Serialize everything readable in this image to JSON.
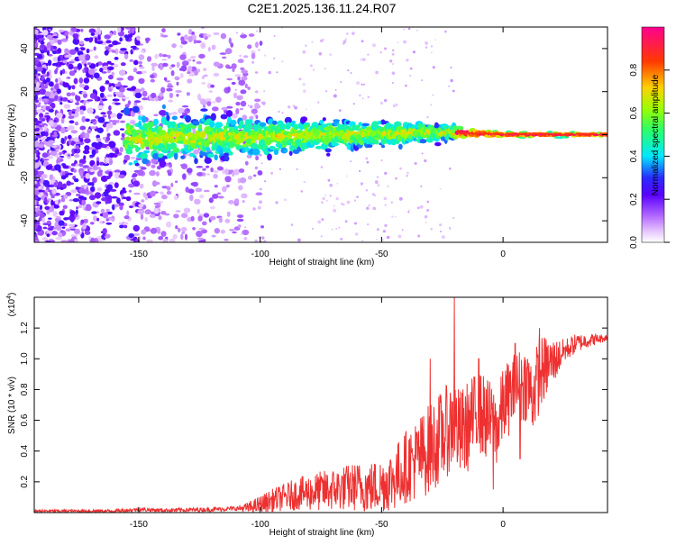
{
  "page_title": "C2E1.2025.136.11.24.R07",
  "chart_data": [
    {
      "type": "heatmap",
      "title": "C2E1.2025.136.11.24.R07",
      "xlabel": "Height of straight line (km)",
      "ylabel": "Frequency (Hz)",
      "xlim": [
        -193,
        43
      ],
      "ylim": [
        -50,
        50
      ],
      "x_ticks": [
        -150,
        -100,
        -50,
        0
      ],
      "x_tick_labels": [
        "-150",
        "-100",
        "-50",
        "0"
      ],
      "y_ticks": [
        -40,
        -20,
        0,
        20,
        40
      ],
      "y_tick_labels": [
        "-40",
        "-20",
        "0",
        "20",
        "40"
      ],
      "colorbar": {
        "label": "Normalized spectral amplitude",
        "range": [
          0,
          1
        ],
        "ticks": [
          0,
          0.2,
          0.4,
          0.6,
          0.8
        ],
        "tick_labels": [
          "0.0",
          "0.2",
          "0.4",
          "0.6",
          "0.8"
        ],
        "colors": [
          "#ffffff",
          "#e7c7ff",
          "#b46bff",
          "#7a00ff",
          "#2a2bff",
          "#00e8ff",
          "#2bff6a",
          "#9aff00",
          "#ffd000",
          "#ff3a00",
          "#ff0090"
        ]
      },
      "trend": {
        "description_points": [
          {
            "x": -150,
            "y": -2,
            "spread": 12
          },
          {
            "x": -100,
            "y": -1,
            "spread": 9
          },
          {
            "x": -50,
            "y": 0.5,
            "spread": 6
          },
          {
            "x": -20,
            "y": 1,
            "spread": 3
          },
          {
            "x": 0,
            "y": 0,
            "spread": 1.5
          },
          {
            "x": 40,
            "y": 0,
            "spread": 1
          }
        ]
      }
    },
    {
      "type": "line",
      "xlabel": "Height of straight line (km)",
      "ylabel": "SNR (10 * v/v)",
      "y_multiplier_label": "(x10",
      "y_multiplier_exponent": "4",
      "xlim": [
        -193,
        43
      ],
      "ylim": [
        0,
        1.4
      ],
      "x_ticks": [
        -150,
        -100,
        -50,
        0
      ],
      "x_tick_labels": [
        "-150",
        "-100",
        "-50",
        "0"
      ],
      "y_ticks": [
        0.2,
        0.4,
        0.6,
        0.8,
        1.0,
        1.2
      ],
      "y_tick_labels": [
        "0.2",
        "0.4",
        "0.6",
        "0.8",
        "1.0",
        "1.2"
      ],
      "line_color": "#ee3030",
      "series": [
        {
          "x": [
            -193,
            -160,
            -150,
            -140,
            -120,
            -105,
            -100,
            -95,
            -90,
            -85,
            -80,
            -75,
            -70,
            -65,
            -60,
            -55,
            -50,
            -45,
            -40,
            -35,
            -30,
            -25,
            -22,
            -20,
            -18,
            -15,
            -10,
            -6,
            -2,
            0,
            5,
            10,
            12,
            15,
            18,
            22,
            25,
            30,
            35,
            40,
            43
          ],
          "y": [
            0.01,
            0.01,
            0.02,
            0.015,
            0.02,
            0.03,
            0.05,
            0.08,
            0.1,
            0.12,
            0.13,
            0.14,
            0.15,
            0.16,
            0.17,
            0.16,
            0.18,
            0.22,
            0.3,
            0.35,
            0.42,
            0.5,
            0.55,
            0.6,
            0.5,
            0.55,
            0.65,
            0.6,
            0.55,
            0.7,
            0.8,
            0.85,
            0.75,
            0.9,
            0.95,
            1.0,
            1.05,
            1.1,
            1.12,
            1.13,
            1.14
          ]
        }
      ],
      "spikes": [
        {
          "x": -20,
          "y": 1.4
        },
        {
          "x": -30,
          "y": 1.0
        },
        {
          "x": -10,
          "y": 1.0
        },
        {
          "x": -4,
          "y": 0.15
        },
        {
          "x": 5,
          "y": 1.1
        },
        {
          "x": 7,
          "y": 0.35
        },
        {
          "x": 15,
          "y": 1.2
        }
      ],
      "noise_amplitude": [
        {
          "x": -193,
          "a": 0.01
        },
        {
          "x": -110,
          "a": 0.015
        },
        {
          "x": -100,
          "a": 0.06
        },
        {
          "x": -80,
          "a": 0.12
        },
        {
          "x": -50,
          "a": 0.18
        },
        {
          "x": -30,
          "a": 0.3
        },
        {
          "x": -15,
          "a": 0.3
        },
        {
          "x": 0,
          "a": 0.25
        },
        {
          "x": 15,
          "a": 0.25
        },
        {
          "x": 25,
          "a": 0.08
        },
        {
          "x": 43,
          "a": 0.02
        }
      ]
    }
  ]
}
